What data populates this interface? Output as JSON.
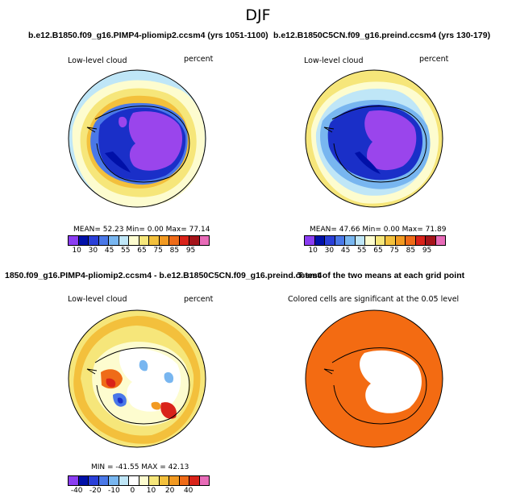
{
  "season": "DJF",
  "panels": [
    {
      "id": "p1",
      "title": "b.e12.B1850.f09_g16.PIMP4-pliomip2.ccsm4 (yrs 1051-1100)",
      "field": "Low-level cloud",
      "units": "percent",
      "stats": "MEAN=   52.23  Min=    0.00  Max=   77.14",
      "colorbar": [
        "#8b3df2",
        "#0010a8",
        "#2a3fd8",
        "#4a78e8",
        "#78b6f0",
        "#bfe6f7",
        "#fdfccf",
        "#f6e67a",
        "#f3c03c",
        "#f29a22",
        "#ef6b18",
        "#d9231a",
        "#a5141a",
        "#e86bb8"
      ],
      "ticks": [
        "10",
        "30",
        "45",
        "55",
        "65",
        "75",
        "85",
        "95"
      ]
    },
    {
      "id": "p2",
      "title": "b.e12.B1850C5CN.f09_g16.preind.ccsm4 (yrs 130-179)",
      "field": "Low-level cloud",
      "units": "percent",
      "stats": "MEAN=   47.66  Min=    0.00  Max=   71.89",
      "colorbar": [
        "#8b3df2",
        "#0010a8",
        "#2a3fd8",
        "#4a78e8",
        "#78b6f0",
        "#bfe6f7",
        "#fdfccf",
        "#f6e67a",
        "#f3c03c",
        "#f29a22",
        "#ef6b18",
        "#d9231a",
        "#a5141a",
        "#e86bb8"
      ],
      "ticks": [
        "10",
        "30",
        "45",
        "55",
        "65",
        "75",
        "85",
        "95"
      ]
    },
    {
      "id": "p3",
      "title": "1850.f09_g16.PIMP4-pliomip2.ccsm4 - b.e12.B1850C5CN.f09_g16.preind.ccsm4",
      "field": "Low-level cloud",
      "units": "percent",
      "stats": "MIN = -41.55  MAX =  42.13",
      "colorbar": [
        "#8b3df2",
        "#0010a8",
        "#2a3fd8",
        "#4a78e8",
        "#78b6f0",
        "#bfe6f7",
        "#ffffff",
        "#fdfccf",
        "#f6e67a",
        "#f3c03c",
        "#f29a22",
        "#ef6b18",
        "#d9231a",
        "#e86bb8"
      ],
      "ticks": [
        "-40",
        "-20",
        "-10",
        "0",
        "10",
        "20",
        "40"
      ]
    },
    {
      "id": "p4",
      "title": "T-test of the two means at each grid point",
      "note": "Colored cells are significant at the 0.05 level"
    }
  ],
  "colors": {
    "significant": "#f36b12",
    "antarctica_mean": "#9a45ec"
  }
}
